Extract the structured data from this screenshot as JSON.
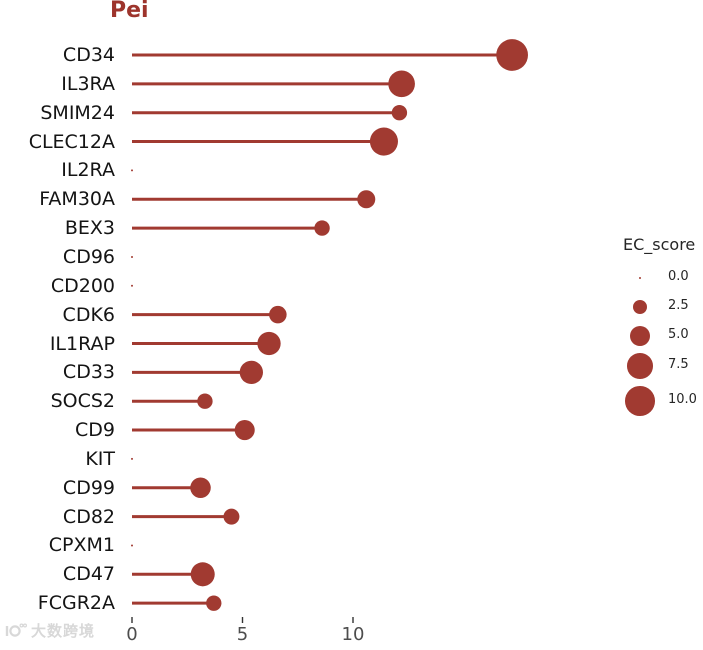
{
  "title": "Pei",
  "watermark": {
    "text": "大数跨境"
  },
  "colors": {
    "accent": "#a13a31",
    "title": "#9d342c",
    "axis_text": "#4d4d4d",
    "gene_text": "#141414",
    "tick_mark": "#333333",
    "watermark": "#d4d4d4"
  },
  "legend": {
    "title": "EC_score",
    "items": [
      {
        "label": "0.0",
        "score": 0
      },
      {
        "label": "2.5",
        "score": 2.5
      },
      {
        "label": "5.0",
        "score": 5
      },
      {
        "label": "7.5",
        "score": 7.5
      },
      {
        "label": "10.0",
        "score": 10
      }
    ]
  },
  "chart_data": {
    "type": "scatter",
    "subtype": "horizontal-lollipop",
    "title": "Pei",
    "xlabel": "",
    "ylabel": "",
    "xlim": [
      0,
      18.5
    ],
    "grid": false,
    "legend_position": "right",
    "size_variable": "EC_score",
    "x_ticks": [
      {
        "label": "0",
        "value": 0
      },
      {
        "label": "5",
        "value": 5
      },
      {
        "label": "10",
        "value": 10
      }
    ],
    "genes": [
      {
        "label": "CD34",
        "value": 17.2,
        "ec_score": 11.5
      },
      {
        "label": "IL3RA",
        "value": 12.2,
        "ec_score": 8.1
      },
      {
        "label": "SMIM24",
        "value": 12.1,
        "ec_score": 2.7
      },
      {
        "label": "CLEC12A",
        "value": 11.4,
        "ec_score": 9.0
      },
      {
        "label": "IL2RA",
        "value": 0,
        "ec_score": 0
      },
      {
        "label": "FAM30A",
        "value": 10.6,
        "ec_score": 3.7
      },
      {
        "label": "BEX3",
        "value": 8.6,
        "ec_score": 2.7
      },
      {
        "label": "CD96",
        "value": 0,
        "ec_score": 0
      },
      {
        "label": "CD200",
        "value": 0,
        "ec_score": 0
      },
      {
        "label": "CDK6",
        "value": 6.6,
        "ec_score": 3.5
      },
      {
        "label": "IL1RAP",
        "value": 6.2,
        "ec_score": 6.2
      },
      {
        "label": "CD33",
        "value": 5.4,
        "ec_score": 6.2
      },
      {
        "label": "SOCS2",
        "value": 3.3,
        "ec_score": 2.7
      },
      {
        "label": "CD9",
        "value": 5.1,
        "ec_score": 4.6
      },
      {
        "label": "KIT",
        "value": 0,
        "ec_score": 0
      },
      {
        "label": "CD99",
        "value": 3.1,
        "ec_score": 4.8
      },
      {
        "label": "CD82",
        "value": 4.5,
        "ec_score": 2.9
      },
      {
        "label": "CPXM1",
        "value": 0,
        "ec_score": 0
      },
      {
        "label": "CD47",
        "value": 3.2,
        "ec_score": 6.6
      },
      {
        "label": "FCGR2A",
        "value": 3.7,
        "ec_score": 2.7
      }
    ]
  }
}
